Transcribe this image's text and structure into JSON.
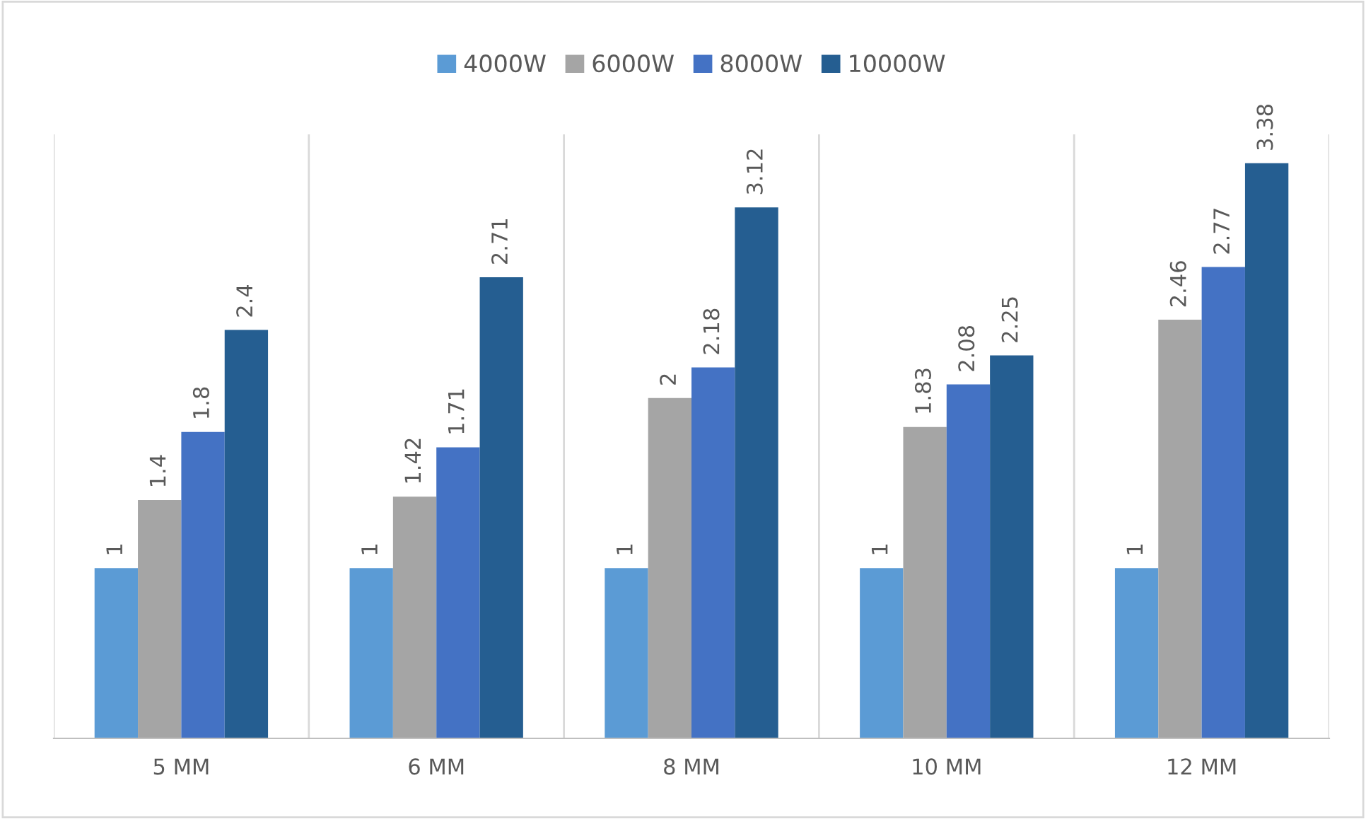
{
  "chart_data": {
    "type": "bar",
    "categories": [
      "5 MM",
      "6 MM",
      "8 MM",
      "10 MM",
      "12 MM"
    ],
    "series": [
      {
        "name": "4000W",
        "color": "#5b9bd5",
        "values": [
          1,
          1,
          1,
          1,
          1
        ]
      },
      {
        "name": "6000W",
        "color": "#a5a5a5",
        "values": [
          1.4,
          1.42,
          2,
          1.83,
          2.46
        ]
      },
      {
        "name": "8000W",
        "color": "#4472c4",
        "values": [
          1.8,
          1.71,
          2.18,
          2.08,
          2.77
        ]
      },
      {
        "name": "10000W",
        "color": "#255e91",
        "values": [
          2.4,
          2.71,
          3.12,
          2.25,
          3.38
        ]
      }
    ],
    "data_labels": true,
    "grid": "x",
    "legend": "top"
  }
}
